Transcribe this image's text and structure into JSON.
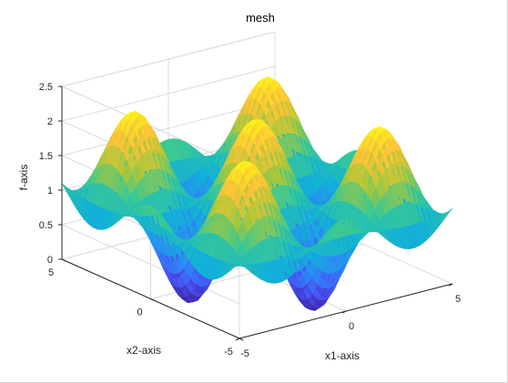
{
  "chart_data": {
    "type": "surface",
    "title": "mesh",
    "xlabel": "x1-axis",
    "ylabel": "x2-axis",
    "zlabel": "f-axis",
    "xlim": [
      -5,
      5
    ],
    "ylim": [
      -5,
      5
    ],
    "zlim": [
      0,
      2.5
    ],
    "x_ticks": [
      -5,
      0,
      5
    ],
    "y_ticks": [
      -5,
      0,
      5
    ],
    "z_ticks": [
      0,
      0.5,
      1,
      1.5,
      2,
      2.5
    ],
    "x_tick_labels": [
      "-5",
      "0",
      "5"
    ],
    "y_tick_labels": [
      "-5",
      "0",
      "5"
    ],
    "z_tick_labels": [
      "0",
      "0.5",
      "1",
      "1.5",
      "2",
      "2.5"
    ],
    "grid": true,
    "colormap": "parula",
    "function_description": "f = 1 + 1.2*cos(x1)*cos(x2) (approx. from figure)"
  },
  "colors": {
    "background": "#ffffff",
    "grid": "#dcdcdc",
    "axis": "#262626"
  }
}
